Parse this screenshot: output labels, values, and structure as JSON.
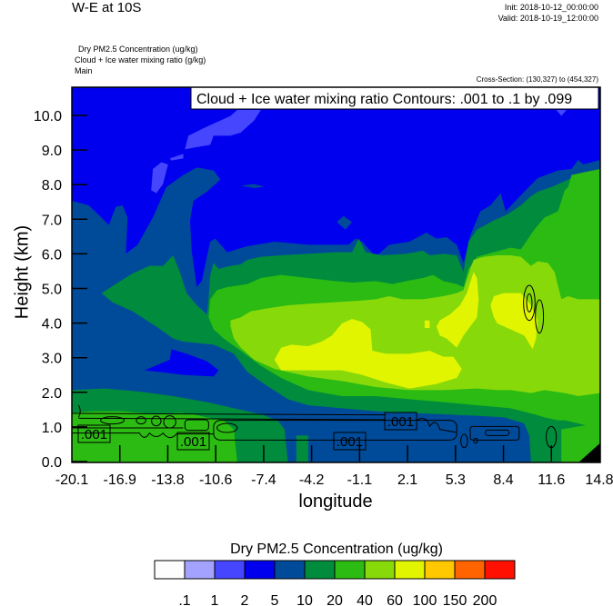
{
  "header": {
    "title": "W-E at 10S",
    "init": "Init: 2018-10-12_00:00:00",
    "valid": "Valid: 2018-10-19_12:00:00",
    "fields": [
      "Dry PM2.5 Concentration   (ug/kg)",
      "Cloud + Ice water mixing ratio   (g/kg)",
      "Main"
    ],
    "cross_section": "Cross-Section: (130,327) to (454,327)"
  },
  "chart_data": {
    "type": "heatmap",
    "subtype": "filled contour cross-section with line contour overlay",
    "xlabel": "longitude",
    "ylabel": "Height (km)",
    "xticks": [
      "-20.1",
      "-16.9",
      "-13.8",
      "-10.6",
      "-7.4",
      "-4.2",
      "-1.1",
      "2.1",
      "5.3",
      "8.4",
      "11.6",
      "14.8"
    ],
    "yticks": [
      "0.0",
      "1.0",
      "2.0",
      "3.0",
      "4.0",
      "5.0",
      "6.0",
      "7.0",
      "8.0",
      "9.0",
      "10.0"
    ],
    "xlim": [
      -20.1,
      14.8
    ],
    "ylim": [
      0,
      10.8
    ],
    "colorbar": {
      "title": "Dry PM2.5 Concentration  (ug/kg)",
      "labels": [
        ".1",
        "1",
        "2",
        "5",
        "10",
        "20",
        "40",
        "60",
        "100",
        "150",
        "200"
      ],
      "colors": [
        "#fdfdfd",
        "#a3a3ff",
        "#4646ff",
        "#0000ee",
        "#004b99",
        "#008c3c",
        "#2bbb12",
        "#87d90a",
        "#e1f500",
        "#ffc800",
        "#ff6400",
        "#ff1000"
      ],
      "placement": "bottom"
    },
    "contour_overlay": {
      "legend": "Cloud + Ice water mixing ratio Contours: .001 to .1 by .099",
      "line_labels": [
        ".001",
        ".001",
        ".001",
        ".001"
      ],
      "color": "#000000"
    }
  }
}
